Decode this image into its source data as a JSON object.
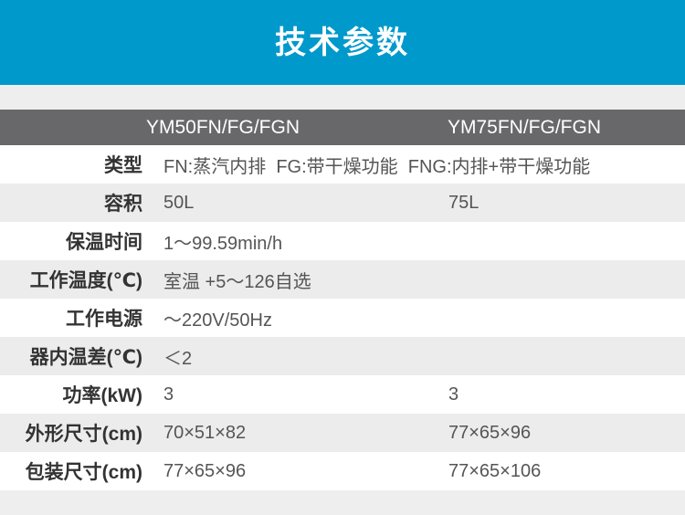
{
  "banner": {
    "title": "技术参数"
  },
  "colors": {
    "banner_bg": "#0099cc",
    "band_bg": "#eeeeee",
    "header_bg": "#68686a",
    "row_alt_bg": "#ececec",
    "label_color": "#333333",
    "value_color": "#555555",
    "header_text": "#ffffff"
  },
  "table": {
    "columns": [
      "YM50FN/FG/FGN",
      "YM75FN/FG/FGN"
    ],
    "rows": [
      {
        "label": "类型",
        "value": "FN:蒸汽内排  FG:带干燥功能  FNG:内排+带干燥功能"
      },
      {
        "label": "容积",
        "values": [
          "50L",
          "75L"
        ]
      },
      {
        "label": "保温时间",
        "value": "1～99.59min/h"
      },
      {
        "label": "工作温度(℃)",
        "value": "室温 +5～126自选"
      },
      {
        "label": "工作电源",
        "value": "～220V/50Hz"
      },
      {
        "label": "器内温差(℃)",
        "value": "＜2"
      },
      {
        "label": "功率(kW)",
        "values": [
          "3",
          "3"
        ]
      },
      {
        "label": "外形尺寸(cm)",
        "values": [
          "70×51×82",
          "77×65×96"
        ]
      },
      {
        "label": "包装尺寸(cm)",
        "values": [
          "77×65×96",
          "77×65×106"
        ]
      }
    ]
  }
}
